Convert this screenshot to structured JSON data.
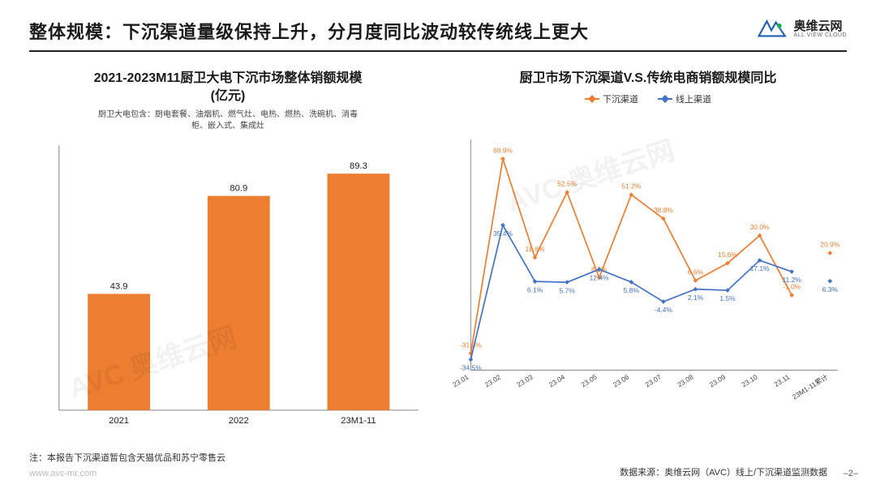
{
  "header": {
    "title": "整体规模：下沉渠道量级保持上升，分月度同比波动较传统线上更大"
  },
  "logo": {
    "cn": "奥维云网",
    "en": "ALL VIEW CLOUD"
  },
  "bar_chart": {
    "type": "bar",
    "title": "2021-2023M11厨卫大电下沉市场整体销额规模\n(亿元)",
    "subtitle": "厨卫大电包含：厨电套餐、油烟机、燃气灶、电热、燃热、洗碗机、消毒\n柜、嵌入式、集成灶",
    "categories": [
      "2021",
      "2022",
      "23M1-11"
    ],
    "values": [
      43.9,
      80.9,
      89.3
    ],
    "value_labels": [
      "43.9",
      "80.9",
      "89.3"
    ],
    "bar_color": "#ed7d31",
    "axis_color": "#888",
    "ylim": [
      0,
      100
    ],
    "bar_width": 0.52,
    "label_fontsize": 11,
    "background_color": "#ffffff"
  },
  "line_chart": {
    "type": "line",
    "title": "厨卫市场下沉渠道V.S.传统电商销额规模同比",
    "legend": {
      "series1": "下沉渠道",
      "series2": "线上渠道"
    },
    "categories": [
      "23.01",
      "23.02",
      "23.03",
      "23.04",
      "23.05",
      "23.06",
      "23.07",
      "23.08",
      "23.09",
      "23.10",
      "23.11",
      "23M1-11累计"
    ],
    "series1": {
      "name": "下沉渠道",
      "color": "#ed7d31",
      "values": [
        -31.3,
        69.9,
        18.6,
        52.5,
        8.1,
        51.2,
        38.8,
        6.6,
        15.6,
        30.0,
        -1.0,
        20.9
      ],
      "labels": [
        "-31.3%",
        "69.9%",
        "18.6%",
        "52.5%",
        "8.1%",
        "51.2%",
        "38.8%",
        "6.6%",
        "15.6%",
        "30.0%",
        "-1.0%",
        "20.9%"
      ],
      "marker": "diamond"
    },
    "series2": {
      "name": "线上渠道",
      "color": "#4472c4",
      "values": [
        -34.5,
        35.4,
        6.1,
        5.7,
        12.4,
        5.8,
        -4.4,
        2.1,
        1.5,
        17.1,
        11.2,
        6.3
      ],
      "labels": [
        "-34.5%",
        "35.4%",
        "6.1%",
        "5.7%",
        "12.4%",
        "5.8%",
        "-4.4%",
        "2.1%",
        "1.5%",
        "17.1%",
        "11.2%",
        "6.3%"
      ],
      "marker": "diamond"
    },
    "ylim": [
      -40,
      80
    ],
    "axis_color": "#888",
    "line_width": 1.8,
    "marker_size": 6,
    "background_color": "#ffffff"
  },
  "footnote": "注：本报告下沉渠道暂包含天猫优品和苏宁零售云",
  "url": "www.avc-mr.com",
  "source": "数据来源：奥维云网（AVC）线上/下沉渠道监测数据",
  "pagenum": "–2–",
  "watermarks": [
    "AVC 奥维云网",
    "AVC 奥维云网"
  ]
}
